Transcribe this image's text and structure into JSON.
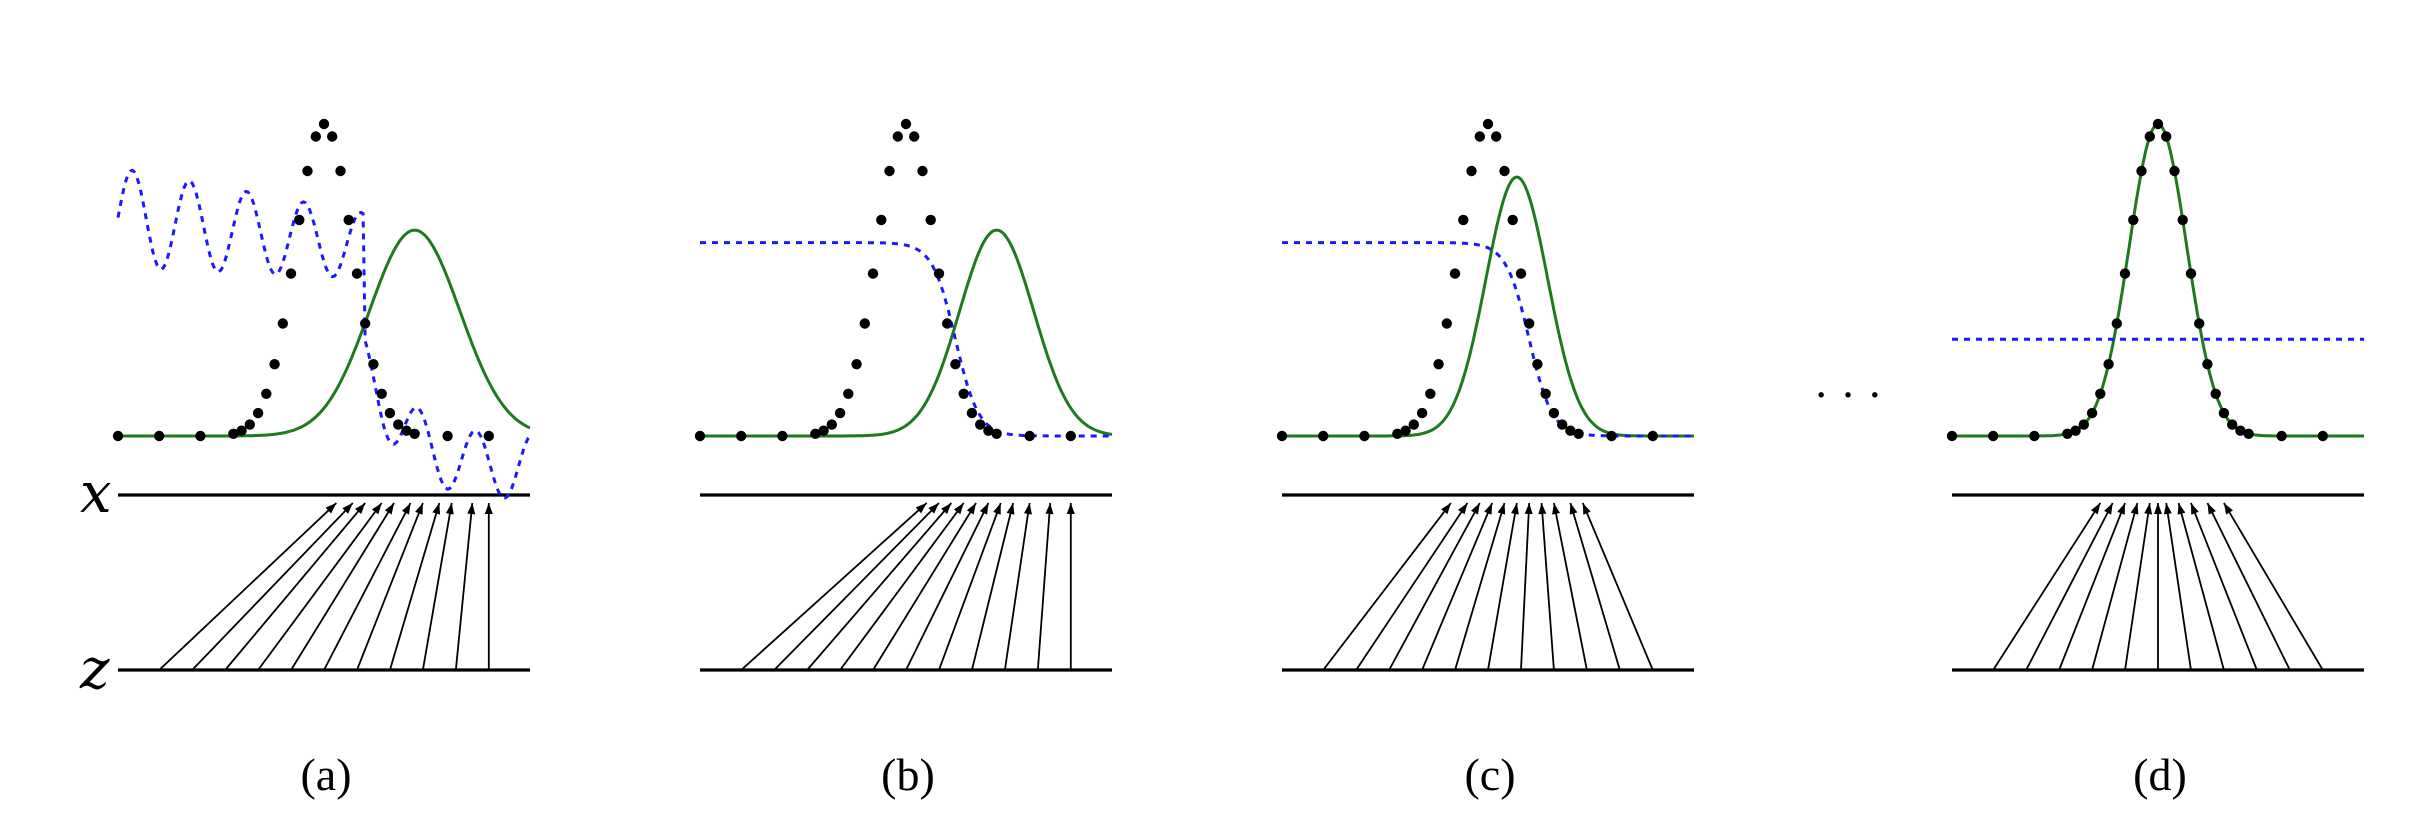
{
  "figure": {
    "axis_labels": {
      "x": "x",
      "z": "z"
    },
    "ellipsis": "· · ·",
    "colors": {
      "data_dots": "#000000",
      "model_density": "#1f7a1f",
      "discriminator": "#1a1aff",
      "axes": "#000000"
    },
    "panels": [
      {
        "caption": "(a)",
        "data": {
          "mean": 0.5,
          "sd": 0.07,
          "peak": 1.0
        },
        "model": {
          "mean": 0.72,
          "sd": 0.11,
          "peak": 0.66
        },
        "discriminator": {
          "kind": "wavy"
        },
        "mapping": {
          "from": [
            0.1,
            0.18,
            0.26,
            0.34,
            0.42,
            0.5,
            0.58,
            0.66,
            0.74,
            0.82,
            0.9
          ],
          "to": [
            0.53,
            0.57,
            0.6,
            0.64,
            0.67,
            0.71,
            0.74,
            0.78,
            0.81,
            0.86,
            0.9
          ]
        }
      },
      {
        "caption": "(b)",
        "data": {
          "mean": 0.5,
          "sd": 0.07,
          "peak": 1.0
        },
        "model": {
          "mean": 0.72,
          "sd": 0.09,
          "peak": 0.66
        },
        "discriminator": {
          "kind": "sigmoid",
          "center": 0.62,
          "high": 0.62,
          "low": 0.0
        },
        "mapping": {
          "from": [
            0.1,
            0.18,
            0.26,
            0.34,
            0.42,
            0.5,
            0.58,
            0.66,
            0.74,
            0.82,
            0.9
          ],
          "to": [
            0.55,
            0.58,
            0.61,
            0.64,
            0.67,
            0.7,
            0.73,
            0.76,
            0.8,
            0.85,
            0.9
          ]
        }
      },
      {
        "caption": "(c)",
        "data": {
          "mean": 0.5,
          "sd": 0.07,
          "peak": 1.0
        },
        "model": {
          "mean": 0.57,
          "sd": 0.075,
          "peak": 0.83
        },
        "discriminator": {
          "kind": "sigmoid",
          "center": 0.6,
          "high": 0.62,
          "low": 0.0
        },
        "mapping": {
          "from": [
            0.1,
            0.18,
            0.26,
            0.34,
            0.42,
            0.5,
            0.58,
            0.66,
            0.74,
            0.82,
            0.9
          ],
          "to": [
            0.41,
            0.45,
            0.48,
            0.51,
            0.54,
            0.57,
            0.6,
            0.63,
            0.66,
            0.7,
            0.73
          ]
        }
      },
      {
        "caption": "(d)",
        "data": {
          "mean": 0.5,
          "sd": 0.07,
          "peak": 1.0
        },
        "model": {
          "mean": 0.5,
          "sd": 0.07,
          "peak": 1.0
        },
        "discriminator": {
          "kind": "flat",
          "level": 0.31
        },
        "mapping": {
          "from": [
            0.1,
            0.18,
            0.26,
            0.34,
            0.42,
            0.5,
            0.58,
            0.66,
            0.74,
            0.82,
            0.9
          ],
          "to": [
            0.36,
            0.39,
            0.42,
            0.45,
            0.48,
            0.5,
            0.52,
            0.55,
            0.58,
            0.62,
            0.66
          ]
        }
      }
    ]
  }
}
